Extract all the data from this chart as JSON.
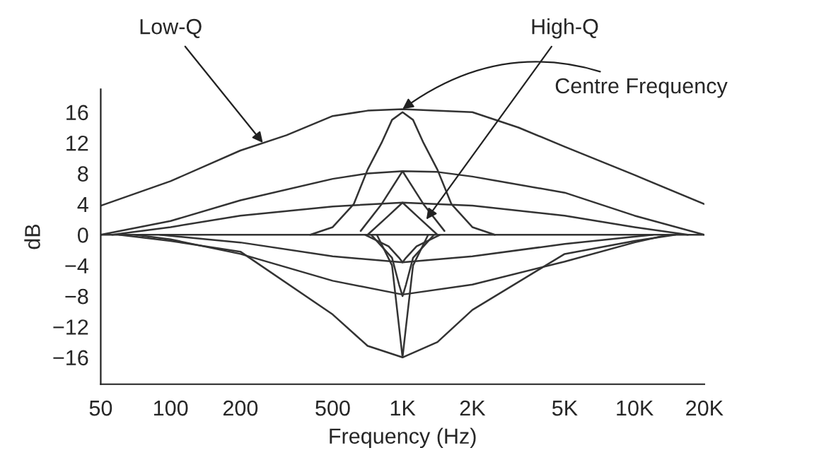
{
  "chart_data": {
    "type": "line",
    "xlabel": "Frequency (Hz)",
    "ylabel": "dB",
    "log": "x",
    "xlim": [
      50,
      20000
    ],
    "ylim": [
      -19.5,
      19
    ],
    "xticks": [
      50,
      100,
      200,
      500,
      {
        "value": 1000,
        "label": "1K"
      },
      {
        "value": 2000,
        "label": "2K"
      },
      {
        "value": 5000,
        "label": "5K"
      },
      {
        "value": 10000,
        "label": "10K"
      },
      {
        "value": 20000,
        "label": "20K"
      }
    ],
    "yticks": [
      16,
      12,
      8,
      4,
      0,
      {
        "value": -4,
        "label": "−4"
      },
      {
        "value": -8,
        "label": "−8"
      },
      {
        "value": -12,
        "label": "−12"
      },
      {
        "value": -16,
        "label": "−16"
      }
    ],
    "grid": false,
    "legend": false,
    "marker": "none",
    "line_style": "solid",
    "ref_lines": [
      {
        "axis": "y",
        "value": 0,
        "color": "#333333"
      }
    ],
    "series": [
      {
        "color": "#333333",
        "x": [
          50,
          100,
          200,
          316,
          500,
          707,
          1000,
          2000,
          3162,
          5000,
          10000,
          20000
        ],
        "values": [
          3.8,
          7,
          11,
          13,
          15.5,
          16.2,
          16.4,
          16,
          14,
          11.5,
          7.8,
          4
        ]
      },
      {
        "color": "#333333",
        "x": [
          400,
          500,
          616,
          707,
          812,
          901,
          1000,
          1110,
          1231,
          1414,
          1625,
          2000,
          2500
        ],
        "values": [
          0,
          1,
          4,
          8.5,
          12,
          15,
          16,
          15,
          12,
          8.5,
          4,
          1,
          0
        ]
      },
      {
        "color": "#333333",
        "x": [
          50,
          100,
          200,
          500,
          707,
          1000,
          1414,
          2000,
          5000,
          10000,
          20000
        ],
        "values": [
          0,
          1.8,
          4.5,
          7.3,
          8,
          8.3,
          8.2,
          7.6,
          5.5,
          2.5,
          0
        ]
      },
      {
        "color": "#333333",
        "x": [
          660,
          812,
          1000,
          1231,
          1516
        ],
        "values": [
          0.5,
          4,
          8.3,
          4,
          0.5
        ]
      },
      {
        "color": "#333333",
        "x": [
          56,
          100,
          200,
          500,
          1000,
          2000,
          5000,
          10000,
          17000
        ],
        "values": [
          0,
          1,
          2.5,
          3.7,
          4.2,
          3.8,
          2.5,
          1,
          0
        ]
      },
      {
        "color": "#333333",
        "x": [
          707,
          871,
          1000,
          1149,
          1414
        ],
        "values": [
          0,
          2.5,
          4.2,
          2.5,
          0
        ]
      },
      {
        "color": "#333333",
        "x": [
          90,
          200,
          500,
          1000,
          2000,
          5000,
          12000
        ],
        "values": [
          0,
          -1,
          -2.8,
          -3.6,
          -2.8,
          -1.2,
          0
        ]
      },
      {
        "color": "#333333",
        "x": [
          70,
          100,
          200,
          500,
          1000,
          2000,
          5000,
          10000,
          14000
        ],
        "values": [
          0,
          -0.6,
          -2.5,
          -6,
          -7.8,
          -6.5,
          -3.5,
          -1,
          0
        ]
      },
      {
        "color": "#333333",
        "x": [
          60,
          100,
          200,
          500,
          707,
          1000,
          1414,
          2000,
          5000,
          10000,
          15000
        ],
        "values": [
          0,
          -0.8,
          -2.2,
          -10.4,
          -14.5,
          -16,
          -14,
          -9.8,
          -2.5,
          -0.8,
          0
        ]
      },
      {
        "color": "#333333",
        "x": [
          690,
          871,
          966,
          1000,
          1035,
          1149,
          1450
        ],
        "values": [
          0,
          -1.5,
          -3,
          -3.6,
          -3,
          -1.5,
          0
        ]
      },
      {
        "color": "#333333",
        "x": [
          733,
          901,
          966,
          1000,
          1035,
          1110,
          1366
        ],
        "values": [
          0,
          -3,
          -6.5,
          -8,
          -6.5,
          -3,
          0
        ]
      },
      {
        "color": "#333333",
        "x": [
          775,
          901,
          966,
          1000,
          1035,
          1110,
          1290
        ],
        "values": [
          0,
          -4,
          -12,
          -16,
          -12,
          -4,
          0
        ]
      }
    ],
    "annotations": [
      {
        "text": "Low-Q",
        "x": 250,
        "y": 12
      },
      {
        "text": "High-Q",
        "x": 1266,
        "y": 2
      },
      {
        "text": "Centre Frequency",
        "x": 1000,
        "y": 16.4
      }
    ]
  }
}
